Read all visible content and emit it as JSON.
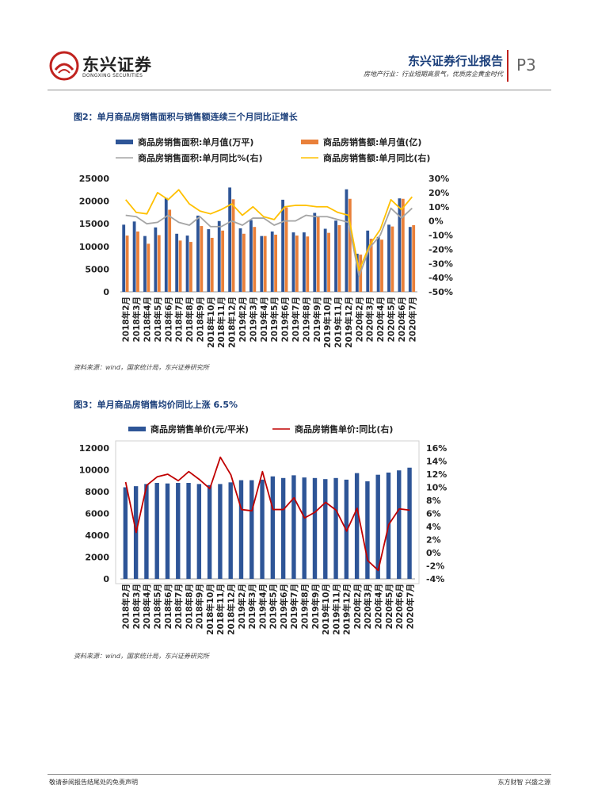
{
  "header": {
    "brand_name": "东兴证券",
    "brand_sub": "DONGXING SECURITIES",
    "report_title": "东兴证券行业报告",
    "report_subtitle": "房地产行业：行业短期高景气，优质房企黄金时代",
    "page_number": "P3"
  },
  "colors": {
    "brand_red": "#c0221e",
    "title_blue": "#1a3e7a",
    "bar_blue": "#2e5597",
    "bar_orange": "#e9803a",
    "line_gray": "#a5a5a5",
    "line_yellow": "#ffc000",
    "line_red": "#c00000"
  },
  "figures": [
    {
      "title": "图2：单月商品房销售面积与销售额连续三个月同比正增长",
      "source": "资料来源：wind，国家统计局，东兴证券研究所"
    },
    {
      "title": "图3：单月商品房销售均价同比上涨 6.5%",
      "source": "资料来源：wind，国家统计局，东兴证券研究所"
    }
  ],
  "chart_data": [
    {
      "type": "bar",
      "categories": [
        "2018年2月",
        "2018年3月",
        "2018年4月",
        "2018年5月",
        "2018年6月",
        "2018年7月",
        "2018年8月",
        "2018年9月",
        "2018年10月",
        "2018年11月",
        "2018年12月",
        "2019年2月",
        "2019年3月",
        "2019年4月",
        "2019年5月",
        "2019年6月",
        "2019年7月",
        "2019年8月",
        "2019年9月",
        "2019年10月",
        "2019年11月",
        "2019年12月",
        "2020年2月",
        "2020年3月",
        "2020年4月",
        "2020年5月",
        "2020年6月",
        "2020年7月"
      ],
      "series": [
        {
          "name": "商品房销售面积:单月值(万平)",
          "kind": "bar",
          "axis": "left",
          "values": [
            14800,
            15500,
            12300,
            14200,
            20700,
            12800,
            12400,
            16800,
            13800,
            15600,
            23000,
            14000,
            15800,
            12300,
            13300,
            20300,
            13100,
            13100,
            17400,
            13900,
            15700,
            22600,
            8400,
            13500,
            12100,
            14800,
            20600,
            14300
          ]
        },
        {
          "name": "商品房销售额:单月值(亿)",
          "kind": "bar",
          "axis": "left",
          "values": [
            12400,
            13300,
            10600,
            12500,
            18100,
            11300,
            11000,
            14500,
            11900,
            13500,
            20400,
            12800,
            14300,
            12300,
            12600,
            18600,
            12400,
            12200,
            16700,
            13000,
            14700,
            20500,
            8200,
            11700,
            11500,
            14400,
            20500,
            14700
          ]
        },
        {
          "name": "商品房销售面积:单月同比%(右)",
          "kind": "line",
          "axis": "right",
          "values": [
            4,
            3,
            -2,
            -1,
            4,
            -1,
            -3,
            3,
            -4,
            -4,
            0,
            -3,
            2,
            2,
            -3,
            0,
            0,
            4,
            3,
            3,
            1,
            -1,
            -39,
            -19,
            -10,
            9,
            2,
            9
          ]
        },
        {
          "name": "商品房销售额:单月同比(右)",
          "kind": "line",
          "axis": "right",
          "values": [
            15,
            6,
            5,
            20,
            15,
            22,
            12,
            7,
            5,
            8,
            12,
            4,
            10,
            3,
            1,
            10,
            11,
            11,
            10,
            10,
            6,
            4,
            -35,
            -17,
            -6,
            15,
            8,
            17
          ]
        }
      ],
      "ylim_left": [
        0,
        25000
      ],
      "yticks_left": [
        "0",
        "5000",
        "10000",
        "15000",
        "20000",
        "25000"
      ],
      "ylim_right": [
        -50,
        30
      ],
      "yticks_right": [
        "-50%",
        "-40%",
        "-30%",
        "-20%",
        "-10%",
        "0%",
        "10%",
        "20%",
        "30%"
      ],
      "legend_position": "top",
      "grid": false
    },
    {
      "type": "bar",
      "categories": [
        "2018年2月",
        "2018年3月",
        "2018年4月",
        "2018年5月",
        "2018年6月",
        "2018年7月",
        "2018年8月",
        "2018年9月",
        "2018年10月",
        "2018年11月",
        "2018年12月",
        "2019年2月",
        "2019年3月",
        "2019年4月",
        "2019年5月",
        "2019年6月",
        "2019年7月",
        "2019年8月",
        "2019年9月",
        "2019年10月",
        "2019年11月",
        "2019年12月",
        "2020年2月",
        "2020年3月",
        "2020年4月",
        "2020年5月",
        "2020年6月",
        "2020年7月"
      ],
      "series": [
        {
          "name": "商品房销售单价(元/平米)",
          "kind": "bar",
          "axis": "left",
          "values": [
            8400,
            8500,
            8700,
            8800,
            8750,
            8800,
            8800,
            8700,
            8600,
            8700,
            8850,
            9050,
            9050,
            9100,
            9400,
            9250,
            9500,
            9300,
            9250,
            9150,
            9250,
            9100,
            9700,
            8950,
            9550,
            9750,
            9950,
            10200
          ]
        },
        {
          "name": "商品房销售单价:同比(右)",
          "kind": "line",
          "axis": "right",
          "values": [
            10.8,
            3.1,
            10.3,
            11.6,
            12.0,
            11.0,
            12.4,
            11.2,
            9.8,
            14.6,
            11.9,
            6.6,
            6.4,
            12.4,
            6.6,
            6.6,
            8.4,
            5.3,
            6.2,
            7.7,
            6.5,
            3.3,
            6.8,
            -1.2,
            -2.7,
            4.3,
            6.7,
            6.5
          ]
        }
      ],
      "ylim_left": [
        0,
        12000
      ],
      "yticks_left": [
        "0",
        "2000",
        "4000",
        "6000",
        "8000",
        "10000",
        "12000"
      ],
      "ylim_right": [
        -4,
        16
      ],
      "yticks_right": [
        "-4%",
        "-2%",
        "0%",
        "2%",
        "4%",
        "6%",
        "8%",
        "10%",
        "12%",
        "14%",
        "16%"
      ],
      "legend_position": "top",
      "grid": false
    }
  ],
  "footer": {
    "disclaimer": "敬请参阅报告结尾处的免责声明",
    "slogan": "东方财智 兴盛之源"
  }
}
